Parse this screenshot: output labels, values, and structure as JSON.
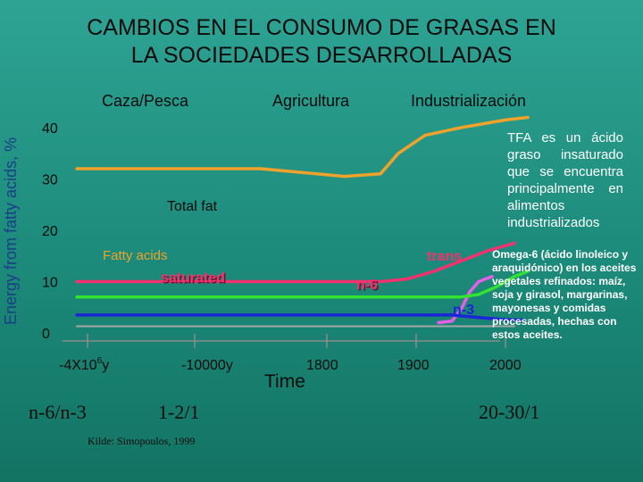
{
  "title_line1": "CAMBIOS EN EL CONSUMO DE GRASAS EN",
  "title_line2": "LA SOCIEDADES DESARROLLADAS",
  "colors": {
    "total_fat": "#f0a22a",
    "saturated": "#f2326e",
    "trans": "#e85ee6",
    "n6": "#33e233",
    "n3": "#1a26d6",
    "baseline": "#a7a7a7"
  },
  "chart_data": {
    "type": "line",
    "title": "",
    "xlabel": "Time",
    "ylabel": "Energy from fatty acids, %",
    "ylim": [
      0,
      45
    ],
    "yticks": [
      0,
      10,
      20,
      30,
      40
    ],
    "eras": [
      "Caza/Pesca",
      "Agricultura",
      "Industrialización"
    ],
    "x_ticks": [
      {
        "label": "-4X10",
        "sup": "6",
        "suffix": "y",
        "pos": 0
      },
      {
        "label": "-10000y",
        "pos": 1
      },
      {
        "label": "1800",
        "pos": 2
      },
      {
        "label": "1900",
        "pos": 3
      },
      {
        "label": "2000",
        "pos": 4
      }
    ],
    "series": [
      {
        "name": "Total fat",
        "key": "total_fat",
        "points": [
          [
            -0.1,
            32
          ],
          [
            1.5,
            32
          ],
          [
            2.2,
            30.5
          ],
          [
            2.6,
            31
          ],
          [
            2.8,
            35
          ],
          [
            3.1,
            38.5
          ],
          [
            3.5,
            40
          ],
          [
            4.0,
            41.5
          ],
          [
            4.25,
            42
          ]
        ]
      },
      {
        "name": "saturated",
        "key": "saturated",
        "points": [
          [
            -0.1,
            10
          ],
          [
            2.6,
            10
          ],
          [
            2.9,
            10.5
          ],
          [
            3.2,
            12
          ],
          [
            3.5,
            14
          ],
          [
            3.8,
            16
          ],
          [
            4.1,
            17.5
          ]
        ]
      },
      {
        "name": "trans",
        "key": "trans",
        "points": [
          [
            3.25,
            2
          ],
          [
            3.4,
            2.3
          ],
          [
            3.5,
            4.5
          ],
          [
            3.6,
            8
          ],
          [
            3.7,
            10
          ],
          [
            3.85,
            11
          ]
        ]
      },
      {
        "name": "n-6",
        "key": "n6",
        "points": [
          [
            -0.1,
            7
          ],
          [
            2.2,
            7
          ],
          [
            3.0,
            7
          ],
          [
            3.5,
            7
          ],
          [
            3.7,
            7.5
          ],
          [
            3.9,
            9
          ],
          [
            4.1,
            11
          ],
          [
            4.25,
            12
          ]
        ]
      },
      {
        "name": "n-3",
        "key": "n3",
        "points": [
          [
            -0.1,
            3.5
          ],
          [
            3.4,
            3.5
          ],
          [
            3.7,
            3
          ],
          [
            4.0,
            2.6
          ],
          [
            4.2,
            2.5
          ]
        ]
      },
      {
        "name": "",
        "key": "baseline",
        "points": [
          [
            -0.1,
            1.3
          ],
          [
            4.1,
            1.3
          ]
        ]
      }
    ],
    "annotations": [
      {
        "text": "Total fat",
        "key": "total_fat"
      },
      {
        "text": "Fatty acids",
        "key": "fatty_acids"
      },
      {
        "text": "saturated",
        "key": "saturated"
      },
      {
        "text": "n-6",
        "key": "n6"
      },
      {
        "text": "trans",
        "key": "trans"
      },
      {
        "text": "n-3",
        "key": "n3"
      }
    ]
  },
  "notes": {
    "tfa": "TFA es un ácido graso insaturado que se encuentra principalmente en alimentos industrializados",
    "omega6": "Omega-6 (ácido linoleico y araquidónico) en los aceites vegetales refinados: maíz, soja y girasol, margarinas, mayonesas y comidas procesadas, hechas con estos aceites."
  },
  "ratios": {
    "label": "n-6/n-3",
    "ancient": "1-2/1",
    "modern": "20-30/1"
  },
  "source": "Kilde: Simopoulos, 1999"
}
